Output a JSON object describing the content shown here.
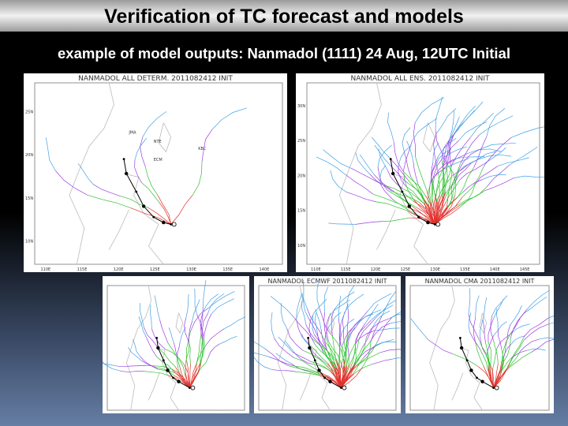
{
  "title": "Verification of TC forecast and models",
  "subtitle": "example of model outputs: Nanmadol (1111) 24 Aug, 12UTC Initial",
  "panels": [
    {
      "header": "NANMADOL   ALL DETERM.   2011082412 INIT",
      "lat_labels": [
        "25N",
        "20N",
        "15N",
        "10N"
      ],
      "lon_labels": [
        "110E",
        "115E",
        "120E",
        "125E",
        "130E",
        "135E",
        "140E"
      ],
      "model_labels": [
        "JMA",
        "NTE",
        "ECM",
        "KBC"
      ]
    },
    {
      "header": "NANMADOL   ALL ENS.   2011082412 INIT",
      "lat_labels": [
        "30N",
        "25N",
        "20N",
        "15N",
        "10N"
      ],
      "lon_labels": [
        "110E",
        "115E",
        "120E",
        "125E",
        "130E",
        "135E",
        "140E",
        "145E"
      ]
    },
    {},
    {
      "header": "NANMADOL   ECMWF   2011082412   INIT"
    },
    {
      "header": "NANMADOL   CMA   2011082412   INIT"
    }
  ]
}
